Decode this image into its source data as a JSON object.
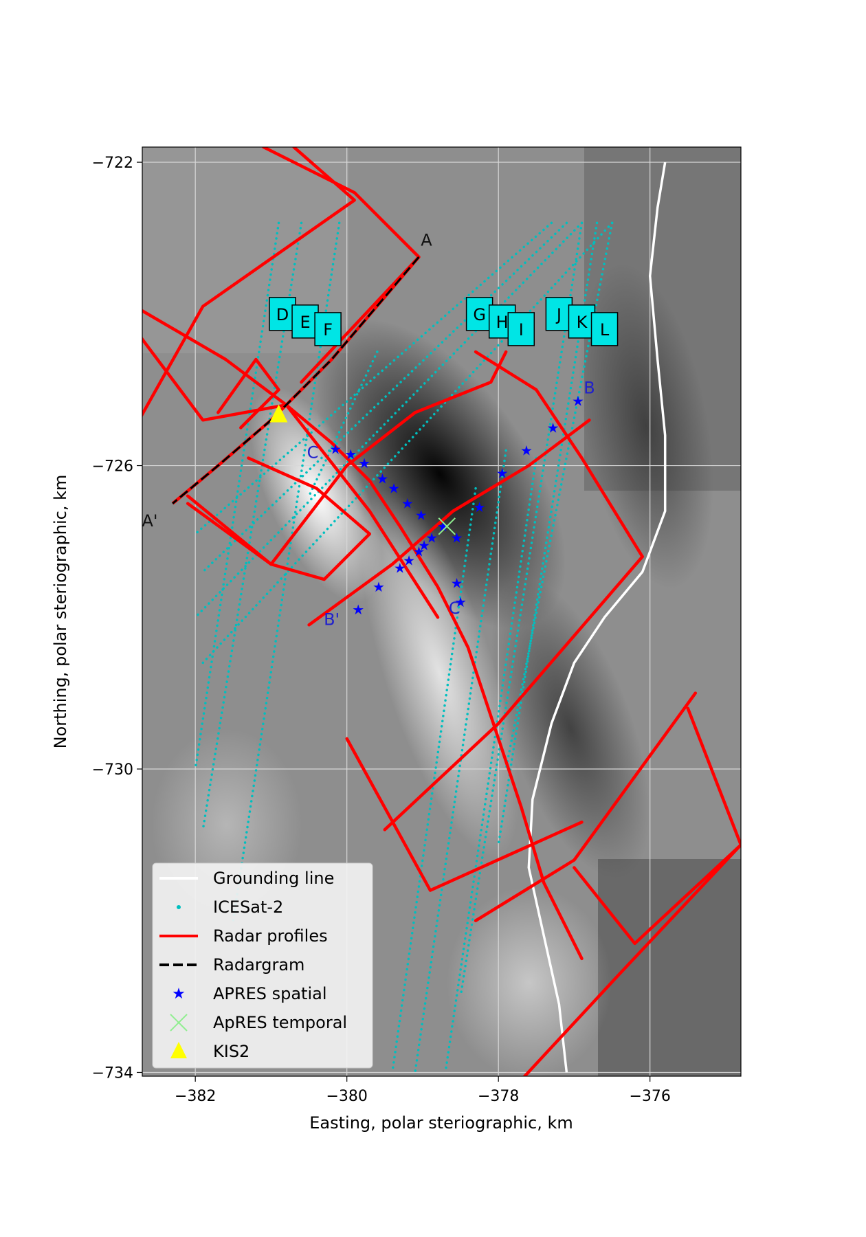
{
  "map": {
    "xlabel": "Easting, polar steriographic, km",
    "ylabel": "Northing, polar steriographic, km",
    "x_range": [
      -382.7,
      -374.8
    ],
    "y_range": [
      -734.05,
      -721.8
    ],
    "x_ticks": [
      -382,
      -380,
      -378,
      -376
    ],
    "y_ticks": [
      -722,
      -726,
      -730,
      -734
    ],
    "x_tick_labels": [
      "−382",
      "−380",
      "−378",
      "−376"
    ],
    "y_tick_labels": [
      "−722",
      "−726",
      "−730",
      "−734"
    ],
    "grid": true,
    "background": "grayscale surface-slope image"
  },
  "chart_data": {
    "type": "map",
    "grounding_line": [
      [
        -375.8,
        -722.0
      ],
      [
        -375.9,
        -722.6
      ],
      [
        -376.0,
        -723.5
      ],
      [
        -375.9,
        -724.6
      ],
      [
        -375.8,
        -725.6
      ],
      [
        -375.8,
        -726.6
      ],
      [
        -376.1,
        -727.4
      ],
      [
        -376.6,
        -728.0
      ],
      [
        -377.0,
        -728.6
      ],
      [
        -377.3,
        -729.4
      ],
      [
        -377.55,
        -730.4
      ],
      [
        -377.6,
        -731.3
      ],
      [
        -377.4,
        -732.2
      ],
      [
        -377.2,
        -733.1
      ],
      [
        -377.1,
        -734.0
      ]
    ],
    "icesat2_tracks": [
      [
        [
          -380.9,
          -722.8
        ],
        [
          -382.0,
          -730.0
        ]
      ],
      [
        [
          -380.6,
          -722.8
        ],
        [
          -381.9,
          -730.8
        ]
      ],
      [
        [
          -380.1,
          -722.8
        ],
        [
          -381.5,
          -732.0
        ]
      ],
      [
        [
          -378.3,
          -726.3
        ],
        [
          -379.4,
          -734.0
        ]
      ],
      [
        [
          -377.9,
          -725.8
        ],
        [
          -379.1,
          -734.0
        ]
      ],
      [
        [
          -377.5,
          -725.9
        ],
        [
          -378.7,
          -734.0
        ]
      ],
      [
        [
          -376.9,
          -722.8
        ],
        [
          -378.5,
          -733.0
        ]
      ],
      [
        [
          -376.7,
          -722.8
        ],
        [
          -378.0,
          -731.0
        ]
      ],
      [
        [
          -376.5,
          -722.8
        ],
        [
          -377.9,
          -730.0
        ]
      ],
      [
        [
          -377.3,
          -722.8
        ],
        [
          -382.0,
          -726.9
        ]
      ],
      [
        [
          -377.1,
          -722.8
        ],
        [
          -381.9,
          -727.4
        ]
      ],
      [
        [
          -376.9,
          -722.8
        ],
        [
          -382.0,
          -728.0
        ]
      ],
      [
        [
          -376.5,
          -722.8
        ],
        [
          -381.9,
          -728.6
        ]
      ],
      [
        [
          -379.6,
          -724.5
        ],
        [
          -380.5,
          -726.4
        ]
      ]
    ],
    "radar_profiles": [
      [
        [
          -380.7,
          -721.8
        ],
        [
          -379.9,
          -722.5
        ],
        [
          -381.9,
          -723.9
        ],
        [
          -382.8,
          -725.5
        ]
      ],
      [
        [
          -381.1,
          -721.8
        ],
        [
          -379.9,
          -722.4
        ],
        [
          -379.05,
          -723.25
        ],
        [
          -380.6,
          -724.9
        ]
      ],
      [
        [
          -382.8,
          -723.9
        ],
        [
          -381.6,
          -724.6
        ],
        [
          -380.8,
          -725.2
        ],
        [
          -380.2,
          -725.7
        ],
        [
          -379.7,
          -726.2
        ],
        [
          -379.3,
          -726.8
        ],
        [
          -378.8,
          -727.6
        ],
        [
          -378.4,
          -728.4
        ],
        [
          -378.1,
          -729.3
        ],
        [
          -377.7,
          -730.5
        ],
        [
          -377.4,
          -731.5
        ],
        [
          -376.9,
          -732.5
        ]
      ],
      [
        [
          -382.8,
          -724.2
        ],
        [
          -381.9,
          -725.4
        ],
        [
          -380.8,
          -725.2
        ],
        [
          -379.7,
          -726.6
        ],
        [
          -378.8,
          -728.0
        ]
      ],
      [
        [
          -380.0,
          -729.6
        ],
        [
          -378.9,
          -731.6
        ],
        [
          -376.9,
          -730.7
        ]
      ],
      [
        [
          -378.3,
          -724.5
        ],
        [
          -377.5,
          -725.0
        ],
        [
          -376.9,
          -725.9
        ],
        [
          -376.1,
          -727.2
        ]
      ],
      [
        [
          -382.1,
          -726.4
        ],
        [
          -381.0,
          -727.3
        ],
        [
          -380.3,
          -727.5
        ],
        [
          -379.7,
          -726.9
        ],
        [
          -380.4,
          -726.3
        ],
        [
          -381.3,
          -725.9
        ]
      ],
      [
        [
          -382.1,
          -726.5
        ],
        [
          -381.0,
          -727.3
        ],
        [
          -380.0,
          -726.0
        ],
        [
          -379.1,
          -725.3
        ],
        [
          -378.1,
          -724.9
        ],
        [
          -377.9,
          -724.5
        ]
      ],
      [
        [
          -380.5,
          -728.1
        ],
        [
          -379.4,
          -727.3
        ],
        [
          -378.6,
          -726.6
        ],
        [
          -377.6,
          -726.0
        ],
        [
          -376.8,
          -725.4
        ]
      ],
      [
        [
          -379.5,
          -730.8
        ],
        [
          -378.0,
          -729.4
        ],
        [
          -376.1,
          -727.2
        ]
      ],
      [
        [
          -378.3,
          -732.0
        ],
        [
          -377.0,
          -731.2
        ],
        [
          -375.4,
          -729.0
        ]
      ],
      [
        [
          -377.0,
          -731.3
        ],
        [
          -376.2,
          -732.3
        ],
        [
          -374.8,
          -731.0
        ],
        [
          -375.5,
          -729.2
        ]
      ],
      [
        [
          -377.7,
          -734.1
        ],
        [
          -376.4,
          -732.7
        ],
        [
          -374.8,
          -731.0
        ]
      ],
      [
        [
          -381.4,
          -725.5
        ],
        [
          -380.9,
          -725.0
        ],
        [
          -381.2,
          -724.6
        ],
        [
          -381.7,
          -725.3
        ]
      ]
    ],
    "radargram": [
      [
        -379.05,
        -723.25
      ],
      [
        -380.2,
        -724.6
      ],
      [
        -381.0,
        -725.4
      ],
      [
        -381.7,
        -726.0
      ],
      [
        -382.3,
        -726.5
      ]
    ],
    "apres_spatial": [
      [
        -380.15,
        -725.78
      ],
      [
        -379.95,
        -725.85
      ],
      [
        -379.77,
        -725.97
      ],
      [
        -379.53,
        -726.17
      ],
      [
        -379.38,
        -726.3
      ],
      [
        -379.2,
        -726.5
      ],
      [
        -379.02,
        -726.65
      ],
      [
        -378.73,
        -726.8
      ],
      [
        -378.55,
        -726.95
      ],
      [
        -378.25,
        -726.55
      ],
      [
        -377.95,
        -726.1
      ],
      [
        -377.63,
        -725.8
      ],
      [
        -377.28,
        -725.5
      ],
      [
        -376.95,
        -725.15
      ],
      [
        -379.85,
        -727.9
      ],
      [
        -379.58,
        -727.6
      ],
      [
        -379.3,
        -727.35
      ],
      [
        -379.18,
        -727.25
      ],
      [
        -379.05,
        -727.13
      ],
      [
        -378.98,
        -727.05
      ],
      [
        -378.88,
        -726.95
      ],
      [
        -378.55,
        -727.55
      ],
      [
        -378.5,
        -727.8
      ]
    ],
    "apres_temporal": [
      -378.68,
      -726.8
    ],
    "kis2": [
      -380.9,
      -725.32
    ],
    "site_labels": [
      {
        "label": "D",
        "x": -380.85,
        "y": -724.0
      },
      {
        "label": "E",
        "x": -380.55,
        "y": -724.1
      },
      {
        "label": "F",
        "x": -380.25,
        "y": -724.2
      },
      {
        "label": "G",
        "x": -378.25,
        "y": -724.0
      },
      {
        "label": "H",
        "x": -377.95,
        "y": -724.1
      },
      {
        "label": "I",
        "x": -377.7,
        "y": -724.2
      },
      {
        "label": "J",
        "x": -377.2,
        "y": -724.0
      },
      {
        "label": "K",
        "x": -376.9,
        "y": -724.1
      },
      {
        "label": "L",
        "x": -376.6,
        "y": -724.2
      }
    ],
    "profile_labels": [
      {
        "label": "A",
        "x": -378.95,
        "y": -723.1,
        "color": "#111111"
      },
      {
        "label": "A'",
        "x": -382.6,
        "y": -726.8,
        "color": "#111111"
      },
      {
        "label": "B",
        "x": -376.8,
        "y": -725.05,
        "color": "#2020cc"
      },
      {
        "label": "B'",
        "x": -380.2,
        "y": -728.1,
        "color": "#2020cc"
      },
      {
        "label": "C",
        "x": -380.45,
        "y": -725.9,
        "color": "#2020cc"
      },
      {
        "label": "C'",
        "x": -378.55,
        "y": -727.95,
        "color": "#2020cc"
      }
    ],
    "legend_position": "lower-left",
    "legend": [
      {
        "key": "grounding",
        "label": "Grounding line"
      },
      {
        "key": "icesat",
        "label": "ICESat-2"
      },
      {
        "key": "radar",
        "label": "Radar profiles"
      },
      {
        "key": "radargram",
        "label": "Radargram"
      },
      {
        "key": "apres_spatial",
        "label": "APRES spatial"
      },
      {
        "key": "apres_temporal",
        "label": "ApRES temporal"
      },
      {
        "key": "kis2",
        "label": "KIS2"
      }
    ]
  },
  "colors": {
    "radar": "#ff0000",
    "icesat": "#00bfbf",
    "grounding": "#ffffff",
    "radargram": "#000000",
    "apres_spatial": "#0000ff",
    "apres_temporal": "#90ee90",
    "kis2": "#ffff00",
    "site_box": "#00e5e5"
  }
}
